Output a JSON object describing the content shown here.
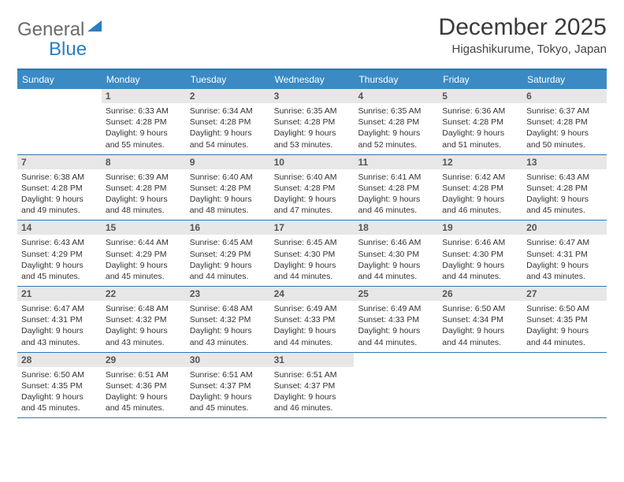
{
  "logo": {
    "text_gray": "General",
    "text_blue": "Blue"
  },
  "title": "December 2025",
  "subtitle": "Higashikurume, Tokyo, Japan",
  "colors": {
    "header_bar": "#3b8ac4",
    "border": "#2f75b5",
    "daynum_bg": "#e7e7e7",
    "page_bg": "#ffffff"
  },
  "day_labels": [
    "Sunday",
    "Monday",
    "Tuesday",
    "Wednesday",
    "Thursday",
    "Friday",
    "Saturday"
  ],
  "weeks": [
    [
      null,
      {
        "n": "1",
        "sr": "6:33 AM",
        "ss": "4:28 PM",
        "dl": "9 hours and 55 minutes."
      },
      {
        "n": "2",
        "sr": "6:34 AM",
        "ss": "4:28 PM",
        "dl": "9 hours and 54 minutes."
      },
      {
        "n": "3",
        "sr": "6:35 AM",
        "ss": "4:28 PM",
        "dl": "9 hours and 53 minutes."
      },
      {
        "n": "4",
        "sr": "6:35 AM",
        "ss": "4:28 PM",
        "dl": "9 hours and 52 minutes."
      },
      {
        "n": "5",
        "sr": "6:36 AM",
        "ss": "4:28 PM",
        "dl": "9 hours and 51 minutes."
      },
      {
        "n": "6",
        "sr": "6:37 AM",
        "ss": "4:28 PM",
        "dl": "9 hours and 50 minutes."
      }
    ],
    [
      {
        "n": "7",
        "sr": "6:38 AM",
        "ss": "4:28 PM",
        "dl": "9 hours and 49 minutes."
      },
      {
        "n": "8",
        "sr": "6:39 AM",
        "ss": "4:28 PM",
        "dl": "9 hours and 48 minutes."
      },
      {
        "n": "9",
        "sr": "6:40 AM",
        "ss": "4:28 PM",
        "dl": "9 hours and 48 minutes."
      },
      {
        "n": "10",
        "sr": "6:40 AM",
        "ss": "4:28 PM",
        "dl": "9 hours and 47 minutes."
      },
      {
        "n": "11",
        "sr": "6:41 AM",
        "ss": "4:28 PM",
        "dl": "9 hours and 46 minutes."
      },
      {
        "n": "12",
        "sr": "6:42 AM",
        "ss": "4:28 PM",
        "dl": "9 hours and 46 minutes."
      },
      {
        "n": "13",
        "sr": "6:43 AM",
        "ss": "4:28 PM",
        "dl": "9 hours and 45 minutes."
      }
    ],
    [
      {
        "n": "14",
        "sr": "6:43 AM",
        "ss": "4:29 PM",
        "dl": "9 hours and 45 minutes."
      },
      {
        "n": "15",
        "sr": "6:44 AM",
        "ss": "4:29 PM",
        "dl": "9 hours and 45 minutes."
      },
      {
        "n": "16",
        "sr": "6:45 AM",
        "ss": "4:29 PM",
        "dl": "9 hours and 44 minutes."
      },
      {
        "n": "17",
        "sr": "6:45 AM",
        "ss": "4:30 PM",
        "dl": "9 hours and 44 minutes."
      },
      {
        "n": "18",
        "sr": "6:46 AM",
        "ss": "4:30 PM",
        "dl": "9 hours and 44 minutes."
      },
      {
        "n": "19",
        "sr": "6:46 AM",
        "ss": "4:30 PM",
        "dl": "9 hours and 44 minutes."
      },
      {
        "n": "20",
        "sr": "6:47 AM",
        "ss": "4:31 PM",
        "dl": "9 hours and 43 minutes."
      }
    ],
    [
      {
        "n": "21",
        "sr": "6:47 AM",
        "ss": "4:31 PM",
        "dl": "9 hours and 43 minutes."
      },
      {
        "n": "22",
        "sr": "6:48 AM",
        "ss": "4:32 PM",
        "dl": "9 hours and 43 minutes."
      },
      {
        "n": "23",
        "sr": "6:48 AM",
        "ss": "4:32 PM",
        "dl": "9 hours and 43 minutes."
      },
      {
        "n": "24",
        "sr": "6:49 AM",
        "ss": "4:33 PM",
        "dl": "9 hours and 44 minutes."
      },
      {
        "n": "25",
        "sr": "6:49 AM",
        "ss": "4:33 PM",
        "dl": "9 hours and 44 minutes."
      },
      {
        "n": "26",
        "sr": "6:50 AM",
        "ss": "4:34 PM",
        "dl": "9 hours and 44 minutes."
      },
      {
        "n": "27",
        "sr": "6:50 AM",
        "ss": "4:35 PM",
        "dl": "9 hours and 44 minutes."
      }
    ],
    [
      {
        "n": "28",
        "sr": "6:50 AM",
        "ss": "4:35 PM",
        "dl": "9 hours and 45 minutes."
      },
      {
        "n": "29",
        "sr": "6:51 AM",
        "ss": "4:36 PM",
        "dl": "9 hours and 45 minutes."
      },
      {
        "n": "30",
        "sr": "6:51 AM",
        "ss": "4:37 PM",
        "dl": "9 hours and 45 minutes."
      },
      {
        "n": "31",
        "sr": "6:51 AM",
        "ss": "4:37 PM",
        "dl": "9 hours and 46 minutes."
      },
      null,
      null,
      null
    ]
  ],
  "labels": {
    "sunrise": "Sunrise:",
    "sunset": "Sunset:",
    "daylight": "Daylight:"
  }
}
